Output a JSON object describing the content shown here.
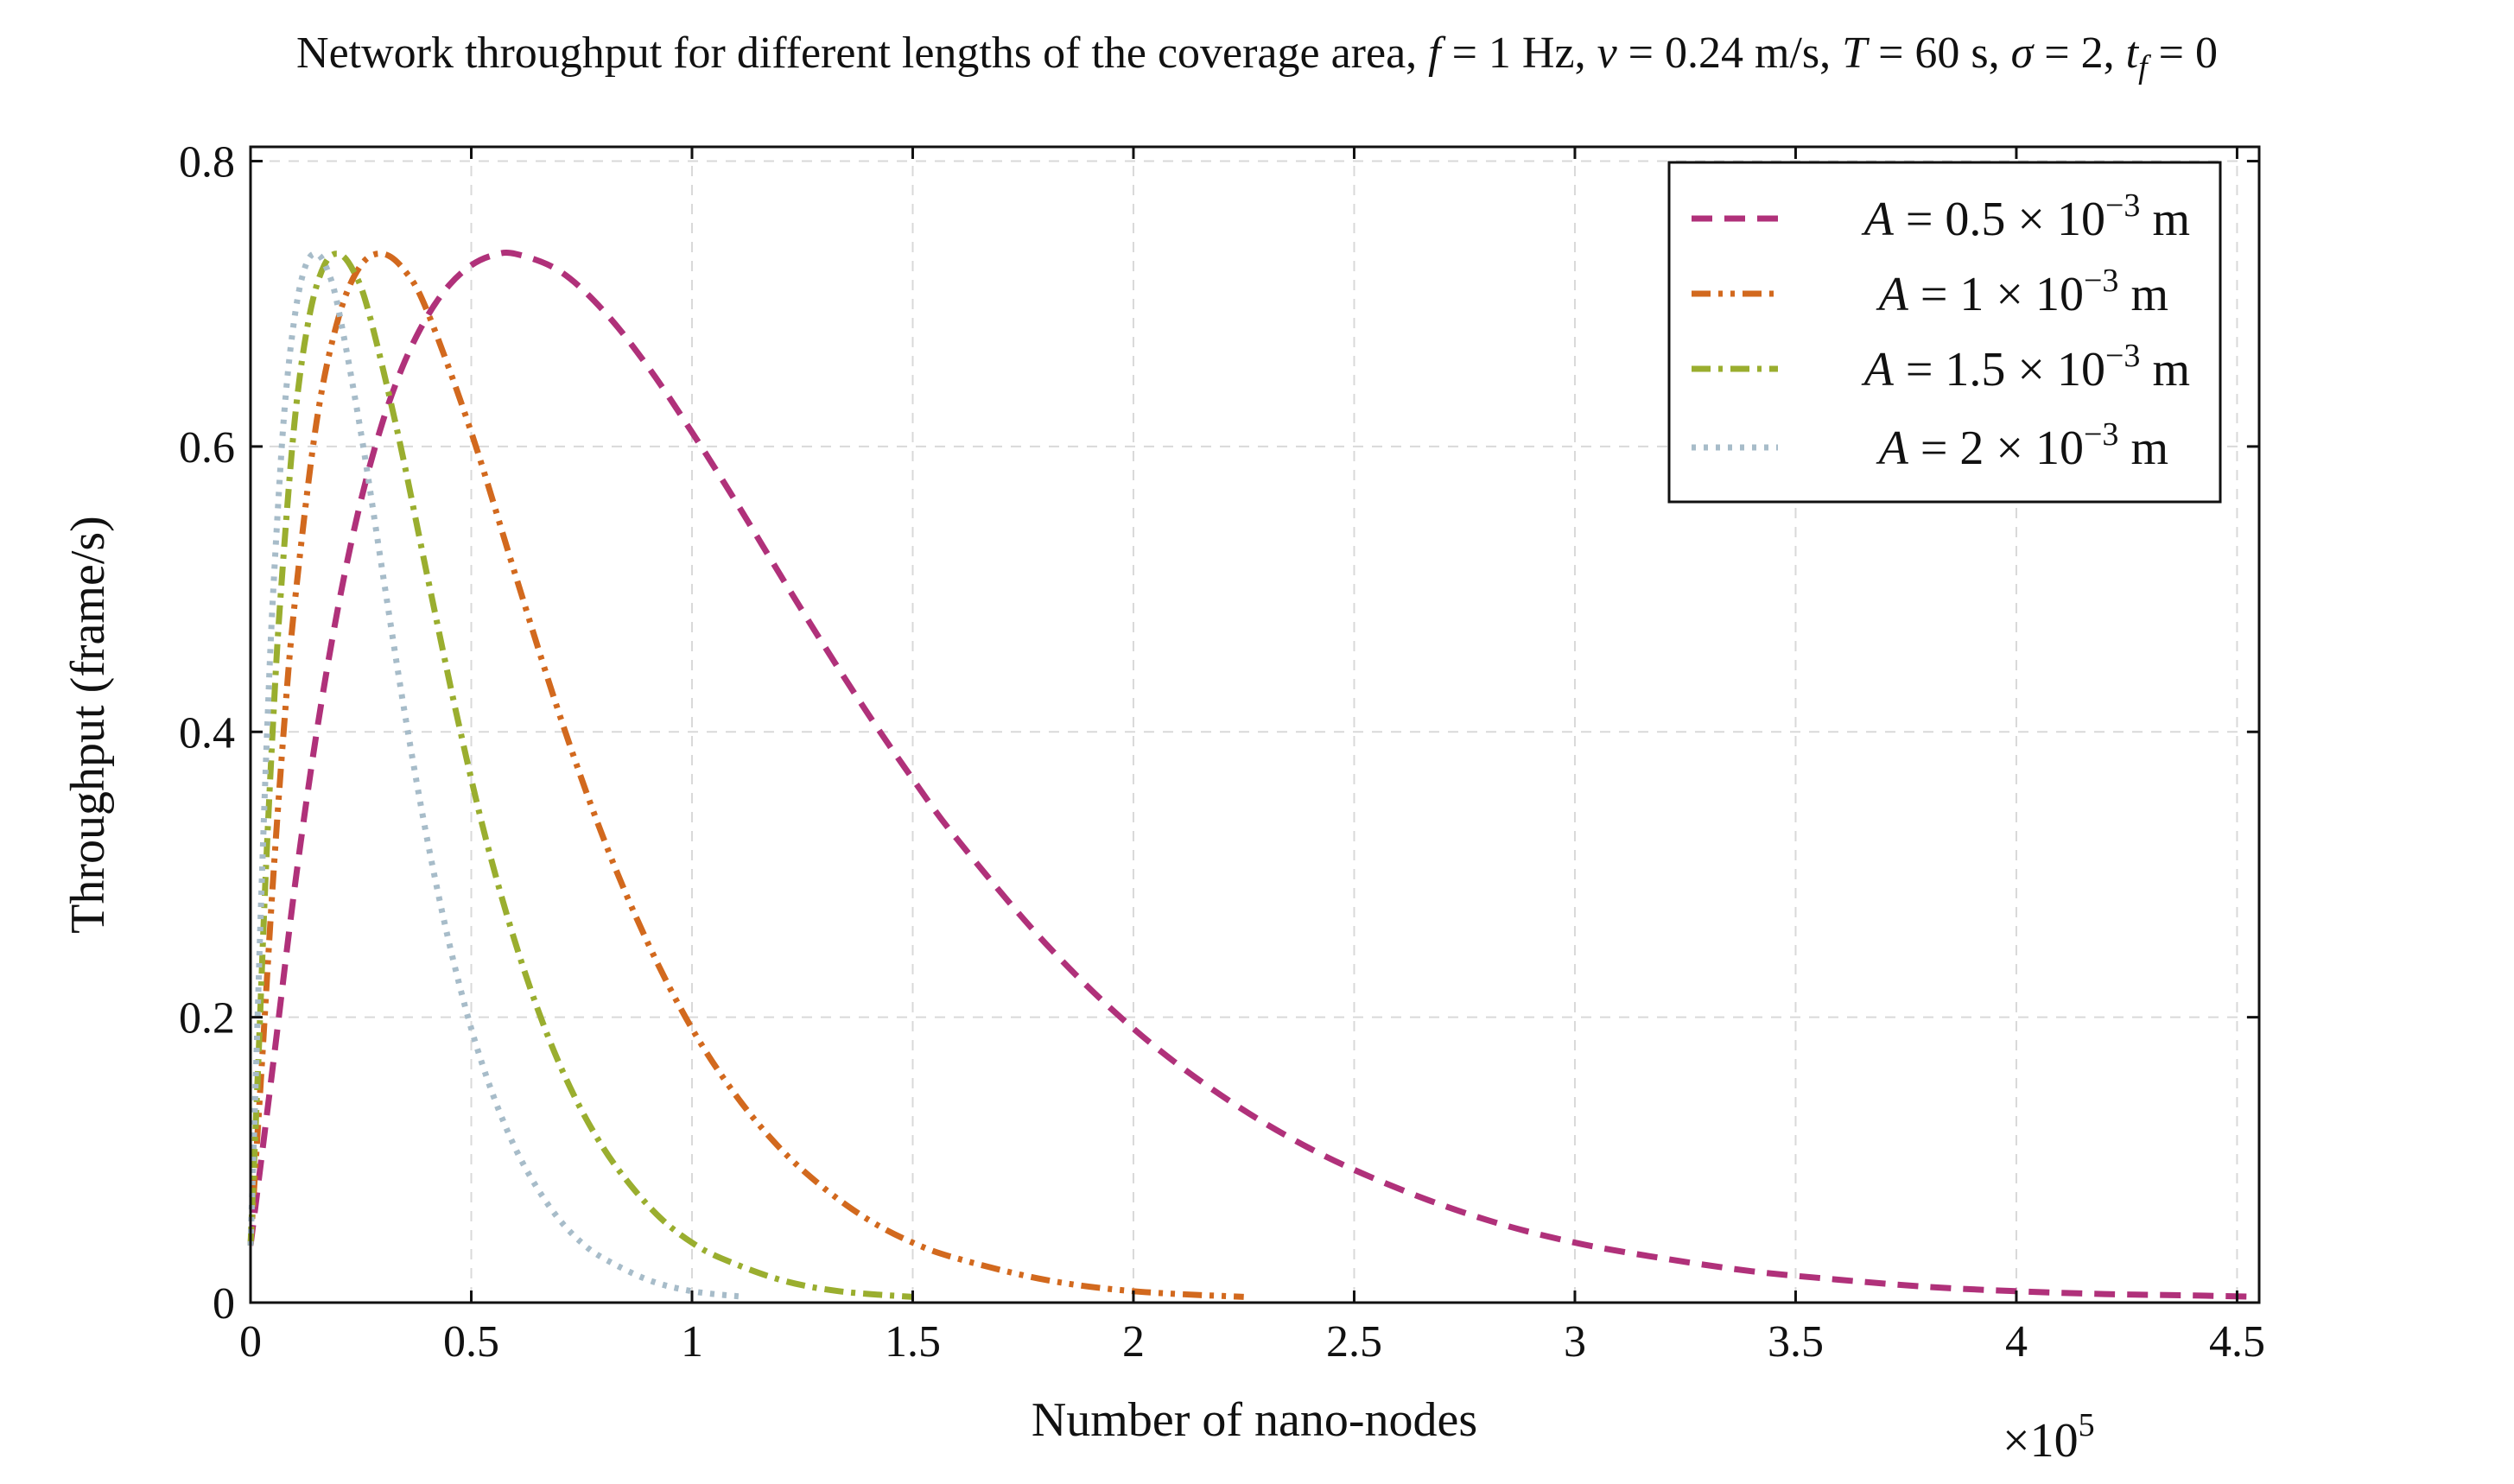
{
  "chart_data": {
    "type": "line",
    "title": "Network throughput for different lengths of the coverage area, f = 1 Hz, v = 0.24 m/s, T = 60 s, σ = 2, t_f = 0",
    "title_parts": {
      "prefix": "Network throughput for different lengths of the coverage area, ",
      "f_eq": " = 1 Hz, ",
      "v_eq": " = 0.24 m/s, ",
      "T_eq": " = 60 s, ",
      "sigma_eq": " = 2, ",
      "tf_eq": " = 0",
      "f_sym": "f",
      "v_sym": "v",
      "T_sym": "T",
      "sigma_sym": "σ",
      "tf_sym": "t",
      "tf_sub": "f"
    },
    "xlabel": "Number of nano-nodes",
    "ylabel": "Throughput (frame/s)",
    "x_scale_note": "×10",
    "x_scale_exp": "5",
    "xlim": [
      0,
      4.55
    ],
    "ylim": [
      0,
      0.81
    ],
    "xticks": [
      0,
      0.5,
      1,
      1.5,
      2,
      2.5,
      3,
      3.5,
      4,
      4.5
    ],
    "xtick_labels": [
      "0",
      "0.5",
      "1",
      "1.5",
      "2",
      "2.5",
      "3",
      "3.5",
      "4",
      "4.5"
    ],
    "yticks": [
      0,
      0.2,
      0.4,
      0.6,
      0.8
    ],
    "ytick_labels": [
      "0",
      "0.2",
      "0.4",
      "0.6",
      "0.8"
    ],
    "grid": true,
    "legend_position": "top-right",
    "series": [
      {
        "name": "A = 0.5 × 10⁻³ m",
        "A_value": "0.5",
        "color": "#b0317a",
        "dash": "dashed",
        "x": [
          0.0,
          0.05,
          0.1,
          0.15,
          0.2,
          0.25,
          0.3,
          0.35,
          0.4,
          0.45,
          0.5,
          0.55,
          0.6,
          0.7,
          0.8,
          0.9,
          1.0,
          1.1,
          1.2,
          1.3,
          1.4,
          1.5,
          1.6,
          1.8,
          2.0,
          2.2,
          2.4,
          2.6,
          2.8,
          3.0,
          3.2,
          3.4,
          3.6,
          3.8,
          4.0,
          4.2,
          4.4,
          4.55
        ],
        "y": [
          0.04,
          0.164,
          0.291,
          0.4,
          0.49,
          0.562,
          0.618,
          0.66,
          0.691,
          0.713,
          0.727,
          0.734,
          0.735,
          0.723,
          0.695,
          0.656,
          0.61,
          0.561,
          0.51,
          0.46,
          0.412,
          0.367,
          0.325,
          0.252,
          0.192,
          0.145,
          0.108,
          0.08,
          0.058,
          0.042,
          0.031,
          0.022,
          0.016,
          0.011,
          0.008,
          0.006,
          0.005,
          0.004
        ]
      },
      {
        "name": "A = 1 × 10⁻³ m",
        "A_value": "1",
        "color": "#d2691e",
        "dash": "dash-dot-dot",
        "x": [
          0.0,
          0.025,
          0.05,
          0.075,
          0.1,
          0.15,
          0.2,
          0.25,
          0.3,
          0.35,
          0.4,
          0.5,
          0.6,
          0.7,
          0.8,
          0.9,
          1.0,
          1.1,
          1.2,
          1.3,
          1.4,
          1.5,
          1.6,
          1.8,
          2.0,
          2.25
        ],
        "y": [
          0.04,
          0.164,
          0.291,
          0.4,
          0.49,
          0.618,
          0.691,
          0.727,
          0.735,
          0.723,
          0.695,
          0.61,
          0.51,
          0.412,
          0.325,
          0.252,
          0.192,
          0.145,
          0.108,
          0.08,
          0.058,
          0.042,
          0.031,
          0.016,
          0.008,
          0.004
        ]
      },
      {
        "name": "A = 1.5 × 10⁻³ m",
        "A_value": "1.5",
        "color": "#9aae2f",
        "dash": "dash-dot",
        "x": [
          0.0,
          0.017,
          0.033,
          0.05,
          0.067,
          0.1,
          0.133,
          0.167,
          0.2,
          0.233,
          0.267,
          0.333,
          0.4,
          0.467,
          0.533,
          0.6,
          0.667,
          0.733,
          0.8,
          0.867,
          0.933,
          1.0,
          1.067,
          1.2,
          1.333,
          1.5
        ],
        "y": [
          0.04,
          0.164,
          0.291,
          0.4,
          0.49,
          0.618,
          0.691,
          0.727,
          0.735,
          0.723,
          0.695,
          0.61,
          0.51,
          0.412,
          0.325,
          0.252,
          0.192,
          0.145,
          0.108,
          0.08,
          0.058,
          0.042,
          0.031,
          0.016,
          0.008,
          0.004
        ]
      },
      {
        "name": "A = 2 × 10⁻³ m",
        "A_value": "2",
        "color": "#a7bcc9",
        "dash": "dotted",
        "x": [
          0.0,
          0.0125,
          0.025,
          0.0375,
          0.05,
          0.075,
          0.1,
          0.125,
          0.15,
          0.175,
          0.2,
          0.25,
          0.3,
          0.35,
          0.4,
          0.45,
          0.5,
          0.55,
          0.6,
          0.65,
          0.7,
          0.75,
          0.8,
          0.9,
          1.0,
          1.12
        ],
        "y": [
          0.04,
          0.164,
          0.291,
          0.4,
          0.49,
          0.618,
          0.691,
          0.727,
          0.735,
          0.723,
          0.695,
          0.61,
          0.51,
          0.412,
          0.325,
          0.252,
          0.192,
          0.145,
          0.108,
          0.08,
          0.058,
          0.042,
          0.031,
          0.016,
          0.008,
          0.004
        ]
      }
    ]
  }
}
